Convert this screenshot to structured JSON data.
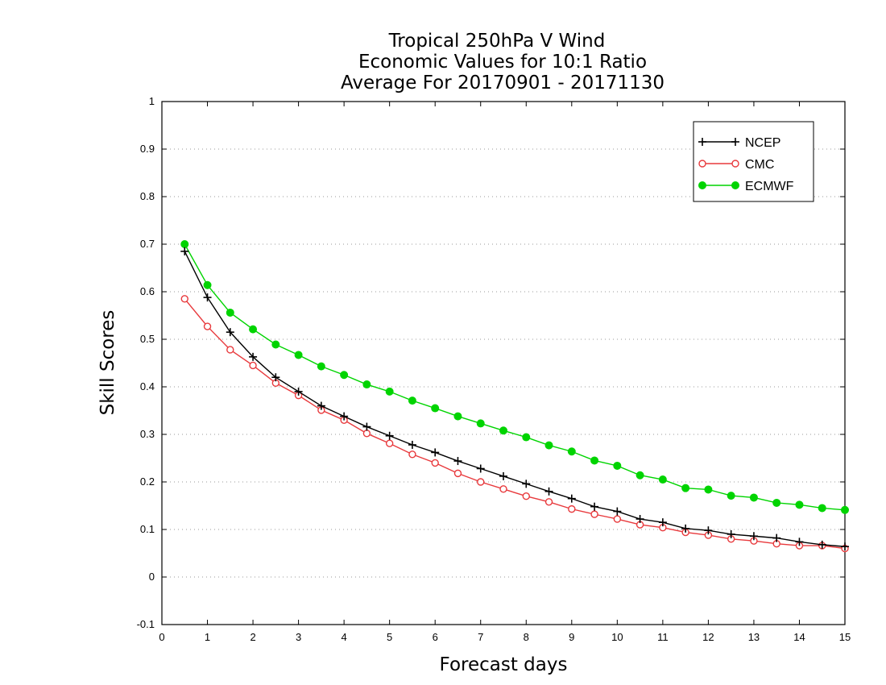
{
  "chart_data": {
    "type": "line",
    "title_lines": [
      "Tropical 250hPa V Wind",
      "Economic Values for 10:1 Ratio",
      "Average For 20170901 - 20171130"
    ],
    "xlabel": "Forecast days",
    "ylabel": "Skill Scores",
    "xlim": [
      0,
      15
    ],
    "ylim": [
      -0.1,
      1
    ],
    "x_ticks": [
      0,
      1,
      2,
      3,
      4,
      5,
      6,
      7,
      8,
      9,
      10,
      11,
      12,
      13,
      14,
      15
    ],
    "x_tick_labels": [
      "0",
      "1",
      "2",
      "3",
      "4",
      "5",
      "6",
      "7",
      "8",
      "9",
      "10",
      "11",
      "12",
      "13",
      "14",
      "15"
    ],
    "y_ticks": [
      -0.1,
      0,
      0.1,
      0.2,
      0.3,
      0.4,
      0.5,
      0.6,
      0.7,
      0.8,
      0.9,
      1
    ],
    "y_tick_labels": [
      "-0.1",
      "0",
      "0.1",
      "0.2",
      "0.3",
      "0.4",
      "0.5",
      "0.6",
      "0.7",
      "0.8",
      "0.9",
      "1"
    ],
    "grid": "horizontal dotted",
    "legend_position": "top-right",
    "x": [
      0.5,
      1,
      1.5,
      2,
      2.5,
      3,
      3.5,
      4,
      4.5,
      5,
      5.5,
      6,
      6.5,
      7,
      7.5,
      8,
      8.5,
      9,
      9.5,
      10,
      10.5,
      11,
      11.5,
      12,
      12.5,
      13,
      13.5,
      14,
      14.5,
      15
    ],
    "series": [
      {
        "name": "NCEP",
        "color": "#000000",
        "marker": "plus",
        "values": [
          0.685,
          0.588,
          0.515,
          0.463,
          0.42,
          0.39,
          0.36,
          0.338,
          0.316,
          0.297,
          0.278,
          0.262,
          0.244,
          0.228,
          0.212,
          0.196,
          0.18,
          0.165,
          0.148,
          0.138,
          0.122,
          0.115,
          0.102,
          0.098,
          0.09,
          0.086,
          0.082,
          0.074,
          0.068,
          0.064
        ]
      },
      {
        "name": "CMC",
        "color": "#e8393c",
        "marker": "open-circle",
        "values": [
          0.585,
          0.527,
          0.478,
          0.445,
          0.408,
          0.382,
          0.351,
          0.33,
          0.302,
          0.281,
          0.258,
          0.24,
          0.218,
          0.2,
          0.185,
          0.17,
          0.158,
          0.143,
          0.132,
          0.122,
          0.11,
          0.104,
          0.094,
          0.088,
          0.08,
          0.076,
          0.07,
          0.066,
          0.066,
          0.06
        ]
      },
      {
        "name": "ECMWF",
        "color": "#00d400",
        "marker": "filled-circle",
        "values": [
          0.7,
          0.614,
          0.556,
          0.521,
          0.489,
          0.467,
          0.443,
          0.425,
          0.405,
          0.39,
          0.371,
          0.355,
          0.338,
          0.323,
          0.308,
          0.294,
          0.277,
          0.264,
          0.245,
          0.234,
          0.214,
          0.205,
          0.187,
          0.184,
          0.171,
          0.167,
          0.156,
          0.152,
          0.145,
          0.141
        ]
      }
    ]
  }
}
